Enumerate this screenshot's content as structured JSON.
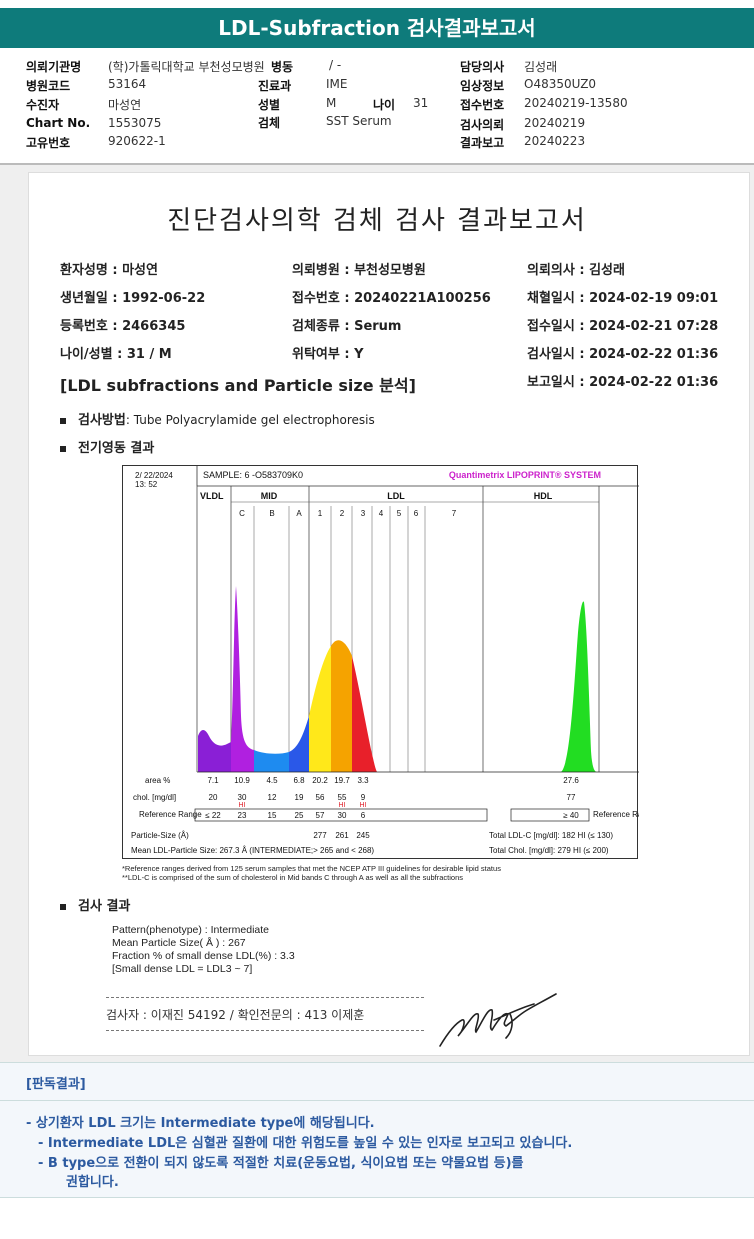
{
  "header": {
    "title": "LDL-Subfraction 검사결과보고서"
  },
  "info": {
    "items": [
      {
        "label": "의뢰기관명",
        "value": "(학)가톨릭대학교 부천성모병원"
      },
      {
        "label": "병원코드",
        "value": "53164"
      },
      {
        "label": "수진자",
        "value": "마성연"
      },
      {
        "label": "Chart No.",
        "value": "1553075"
      },
      {
        "label": "고유번호",
        "value": "920622-1"
      },
      {
        "label": "병동",
        "value": "/ -"
      },
      {
        "label": "진료과",
        "value": "IME"
      },
      {
        "label": "성별",
        "value": "M"
      },
      {
        "label": "나이",
        "value": "31"
      },
      {
        "label": "검체",
        "value": "SST Serum"
      },
      {
        "label": "담당의사",
        "value": "김성래"
      },
      {
        "label": "임상정보",
        "value": "O48350UZ0"
      },
      {
        "label": "접수번호",
        "value": "20240219-13580"
      },
      {
        "label": "검사의뢰",
        "value": "20240219"
      },
      {
        "label": "결과보고",
        "value": "20240223"
      }
    ]
  },
  "report": {
    "title": "진단검사의학 검체 검사 결과보고서",
    "patient": [
      "환자성명 : 마성연",
      "의뢰병원 : 부천성모병원",
      "의뢰의사 : 김성래",
      "생년월일 : 1992-06-22",
      "접수번호 : 20240221A100256",
      "채혈일시 : 2024-02-19 09:01",
      "등록번호 : 2466345",
      "검체종류 : Serum",
      "접수일시 : 2024-02-21 07:28",
      "나이/성별 : 31 / M",
      "위탁여부 : Y",
      "검사일시 : 2024-02-22 01:36",
      "보고일시 : 2024-02-22 01:36"
    ],
    "section_title": "[LDL subfractions and Particle size 분석]",
    "method_label": "검사방법",
    "method_value": ": Tube Polyacrylamide gel electrophoresis",
    "electro_label": "전기영동 결과",
    "result_label": "검사 결과",
    "results": [
      "Pattern(phenotype) : Intermediate",
      "Mean Particle Size( Å ) : 267",
      "Fraction % of small dense LDL(%) : 3.3",
      "[Small dense LDL = LDL3 ~ 7]"
    ],
    "footnotes": [
      "*Reference ranges derived from 125 serum samples that met the NCEP ATP III guidelines for desirable lipid status",
      "**LDL-C is comprised of the sum of cholesterol in Mid bands C through A as well as all the subfractions"
    ],
    "tester": "검사자 : 이재진  54192  /  확인전문의 : 413  이제훈"
  },
  "lipoprint": {
    "date": "2/ 22/2024",
    "time": "13: 52",
    "sample": "SAMPLE:   6 -O583709K0",
    "system": "Quantimetrix LIPOPRINT® SYSTEM",
    "groups": [
      "VLDL",
      "MID",
      "LDL",
      "HDL"
    ],
    "bands": [
      "C",
      "B",
      "A",
      "1",
      "2",
      "3",
      "4",
      "5",
      "6",
      "7"
    ],
    "row_area_label": "area %",
    "row_chol_label": "chol. [mg/dl]",
    "row_ref_label": "Reference Range",
    "area": [
      "7.1",
      "10.9",
      "4.5",
      "6.8",
      "20.2",
      "19.7",
      "3.3",
      "27.6"
    ],
    "chol": [
      "20",
      "30",
      "12",
      "19",
      "56",
      "55",
      "9",
      "77"
    ],
    "ref": [
      "≤ 22",
      "23",
      "15",
      "25",
      "57",
      "30",
      "6",
      "≥ 40"
    ],
    "hi": "HI",
    "particle_size_label": "Particle-Size (Å)",
    "particle_sizes": [
      "277",
      "261",
      "245"
    ],
    "mean_size_text": "Mean LDL-Particle Size:   267.3 Å  (INTERMEDIATE;> 265 and < 268)",
    "total_ldl_text": "Total LDL-C [mg/dl]:  182  HI  (≤ 130)",
    "total_chol_text": "Total Chol. [mg/dl]:   279  HI  (≤ 200)",
    "ref_side_label": "Reference Range"
  },
  "interpretation": {
    "heading": "[판독결과]",
    "lines": [
      "- 상기환자 LDL 크기는 Intermediate type에 해당됩니다.",
      "- Intermediate LDL은 심혈관 질환에 대한 위험도를 높일 수 있는 인자로 보고되고 있습니다.",
      "- B type으로 전환이 되지 않도록 적절한 치료(운동요법, 식이요법 또는 약물요법 등)를",
      "권합니다."
    ]
  },
  "colors": {
    "title_bar": "#0e7b7b",
    "vldl": "#8a1fd6",
    "mid": "#b020e0",
    "ldl1": "#ffe81a",
    "ldl2": "#f5a300",
    "ldl3": "#e8202a",
    "hdl": "#22dd22",
    "interp_text": "#2c5aa0",
    "hi": "#e0202a",
    "system_text": "#cc22cc"
  }
}
